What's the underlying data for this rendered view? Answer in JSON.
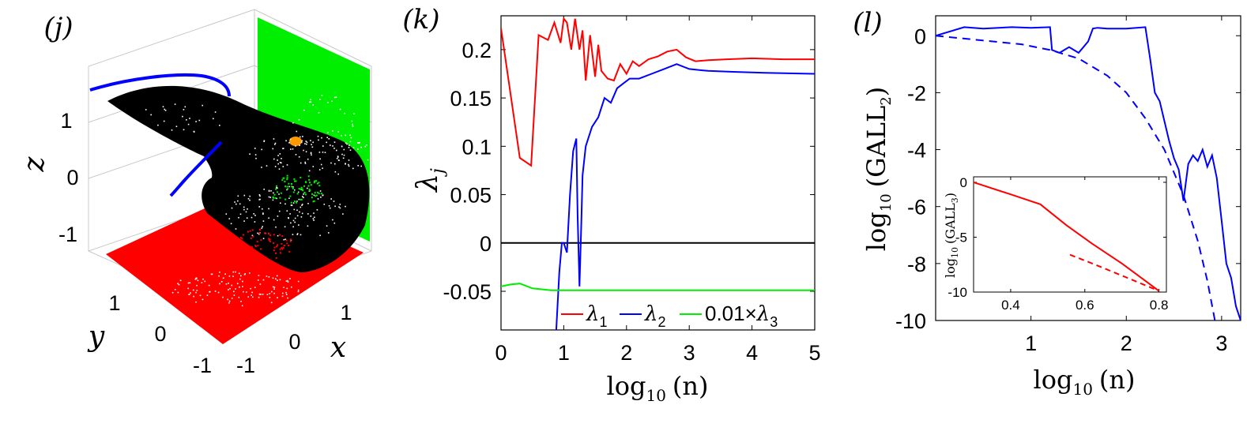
{
  "colors": {
    "red": "#ff0000",
    "blue": "#0000ff",
    "green": "#00ee00",
    "black": "#000000",
    "orange": "#ff9900"
  },
  "chart_data": [
    {
      "panel": "(j)",
      "type": "scatter",
      "projection": "3d",
      "axes": {
        "x": "x",
        "y": "y",
        "z": "z"
      },
      "ticks": {
        "x": [
          "-1",
          "0",
          "1"
        ],
        "y": [
          "-1",
          "0",
          "1"
        ],
        "z": [
          "-1",
          "0",
          "1"
        ]
      },
      "series": [
        {
          "color": "black",
          "role": "attractor surface"
        },
        {
          "color": "red",
          "role": "projection on x-y plane"
        },
        {
          "color": "green",
          "role": "projection on y-z plane"
        },
        {
          "color": "blue",
          "role": "curve"
        }
      ]
    },
    {
      "panel": "(k)",
      "type": "line",
      "xlabel_base": "log",
      "xlabel_sub": "10",
      "xlabel_arg": "(n)",
      "ylabel_base": "λ",
      "ylabel_sub": "j",
      "xlim": [
        0,
        5
      ],
      "ylim": [
        -0.09,
        0.235
      ],
      "xticks": [
        0,
        1,
        2,
        3,
        4,
        5
      ],
      "xtick_labels": [
        "0",
        "1",
        "2",
        "3",
        "4",
        "5"
      ],
      "yticks": [
        -0.05,
        0,
        0.05,
        0.1,
        0.15,
        0.2
      ],
      "ytick_labels": [
        "-0.05",
        "0",
        "0.05",
        "0.1",
        "0.15",
        "0.2"
      ],
      "legend_position": "bottom",
      "legend": [
        {
          "base": "λ",
          "sub": "1",
          "prefix": "",
          "color": "red"
        },
        {
          "base": "λ",
          "sub": "2",
          "prefix": "",
          "color": "blue"
        },
        {
          "base": "λ",
          "sub": "3",
          "prefix": "0.01×",
          "color": "green"
        }
      ],
      "zero_line": 0,
      "series": [
        {
          "color": "red",
          "x": [
            0,
            0.3,
            0.48,
            0.6,
            0.75,
            0.85,
            0.95,
            1.0,
            1.05,
            1.12,
            1.18,
            1.25,
            1.3,
            1.35,
            1.42,
            1.5,
            1.55,
            1.6,
            1.7,
            1.8,
            1.9,
            2.0,
            2.1,
            2.2,
            2.35,
            2.5,
            2.65,
            2.8,
            2.95,
            3.1,
            3.3,
            3.6,
            4.0,
            4.5,
            5.0
          ],
          "y": [
            0.222,
            0.088,
            0.08,
            0.215,
            0.21,
            0.228,
            0.207,
            0.232,
            0.228,
            0.2,
            0.232,
            0.2,
            0.22,
            0.168,
            0.215,
            0.172,
            0.205,
            0.178,
            0.17,
            0.168,
            0.185,
            0.175,
            0.188,
            0.183,
            0.19,
            0.193,
            0.198,
            0.2,
            0.192,
            0.188,
            0.189,
            0.19,
            0.191,
            0.19,
            0.19
          ]
        },
        {
          "color": "blue",
          "x": [
            0.88,
            0.93,
            0.97,
            1.0,
            1.05,
            1.1,
            1.15,
            1.2,
            1.22,
            1.25,
            1.28,
            1.3,
            1.35,
            1.45,
            1.55,
            1.65,
            1.75,
            1.85,
            1.95,
            2.05,
            2.2,
            2.4,
            2.6,
            2.8,
            3.0,
            3.3,
            3.7,
            4.2,
            5.0
          ],
          "y": [
            -0.09,
            -0.03,
            0.0,
            0.0,
            -0.01,
            0.05,
            0.095,
            0.108,
            0.03,
            -0.045,
            0.02,
            0.07,
            0.1,
            0.12,
            0.13,
            0.15,
            0.145,
            0.16,
            0.165,
            0.17,
            0.17,
            0.175,
            0.18,
            0.185,
            0.18,
            0.178,
            0.177,
            0.176,
            0.175
          ]
        },
        {
          "color": "green",
          "x": [
            0,
            0.15,
            0.3,
            0.5,
            0.8,
            1.0,
            2.0,
            3.0,
            4.0,
            5.0
          ],
          "y": [
            -0.045,
            -0.043,
            -0.042,
            -0.047,
            -0.049,
            -0.049,
            -0.049,
            -0.049,
            -0.049,
            -0.049
          ]
        }
      ]
    },
    {
      "panel": "(l)",
      "type": "line",
      "xlabel_base": "log",
      "xlabel_sub": "10",
      "xlabel_arg": "(n)",
      "ylabel_base": "log",
      "ylabel_sub": "10",
      "ylabel_arg": "(GALL",
      "ylabel_arg_sub": "2",
      "ylabel_arg_close": ")",
      "xlim": [
        0,
        3.2
      ],
      "ylim": [
        -10,
        0.7
      ],
      "xticks": [
        1,
        2,
        3
      ],
      "xtick_labels": [
        "1",
        "2",
        "3"
      ],
      "yticks": [
        -10,
        -8,
        -6,
        -4,
        -2,
        0
      ],
      "ytick_labels": [
        "-10",
        "-8",
        "-6",
        "-4",
        "-2",
        "0"
      ],
      "series": [
        {
          "color": "blue",
          "style": "solid",
          "x": [
            0,
            0.3,
            0.5,
            0.8,
            1.0,
            1.2,
            1.22,
            1.3,
            1.4,
            1.5,
            1.6,
            1.65,
            1.7,
            1.8,
            2.0,
            2.2,
            2.25,
            2.3,
            2.35,
            2.4,
            2.45,
            2.5,
            2.55,
            2.6,
            2.65,
            2.7,
            2.75,
            2.8,
            2.85,
            2.9,
            2.95,
            3.0,
            3.05,
            3.1,
            3.15,
            3.2
          ],
          "y": [
            0,
            0.3,
            0.25,
            0.3,
            0.28,
            0.3,
            -0.5,
            -0.6,
            -0.4,
            -0.6,
            -0.2,
            0.25,
            0.28,
            0.25,
            0.25,
            0.3,
            -0.8,
            -2.0,
            -2.3,
            -3.0,
            -3.7,
            -4.3,
            -4.7,
            -5.8,
            -4.5,
            -4.2,
            -4.4,
            -4.0,
            -4.6,
            -4.2,
            -5.0,
            -6.5,
            -8.0,
            -8.5,
            -9.5,
            -10.0
          ]
        },
        {
          "color": "blue",
          "style": "dashed",
          "x": [
            0,
            0.3,
            0.6,
            0.9,
            1.2,
            1.5,
            1.8,
            2.0,
            2.2,
            2.4,
            2.6,
            2.75,
            2.85,
            2.93
          ],
          "y": [
            0,
            -0.1,
            -0.2,
            -0.3,
            -0.5,
            -0.8,
            -1.4,
            -2.0,
            -2.9,
            -4.0,
            -5.6,
            -7.2,
            -8.6,
            -10.0
          ]
        }
      ]
    },
    {
      "panel": "(l) inset",
      "type": "line",
      "ylabel_base": "log",
      "ylabel_sub": "10",
      "ylabel_arg": "(GALL",
      "ylabel_arg_sub": "3",
      "ylabel_arg_close": ")",
      "xlim": [
        0.3,
        0.82
      ],
      "ylim": [
        -10,
        0.5
      ],
      "xticks": [
        0.4,
        0.6,
        0.8
      ],
      "xtick_labels": [
        "0.4",
        "0.6",
        "0.8"
      ],
      "yticks": [
        -10,
        -5,
        0
      ],
      "ytick_labels": [
        "-10",
        "-5",
        "0"
      ],
      "series": [
        {
          "color": "red",
          "style": "solid",
          "x": [
            0.3,
            0.4,
            0.48,
            0.55,
            0.62,
            0.7,
            0.8
          ],
          "y": [
            0,
            -1.1,
            -2.0,
            -3.9,
            -5.6,
            -7.4,
            -9.9
          ]
        },
        {
          "color": "red",
          "style": "dashed",
          "x": [
            0.56,
            0.62,
            0.7,
            0.8
          ],
          "y": [
            -6.6,
            -7.4,
            -8.5,
            -9.9
          ]
        }
      ]
    }
  ]
}
